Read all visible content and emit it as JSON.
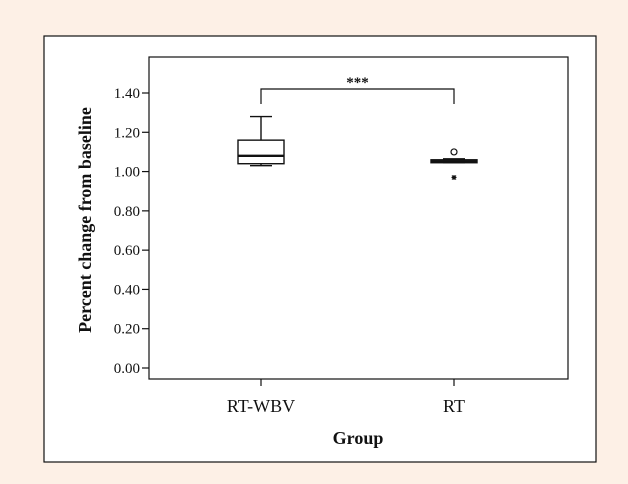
{
  "chart_data": {
    "type": "box",
    "xlabel": "Group",
    "ylabel": "Percent change from baseline",
    "ylim": [
      0.0,
      1.5
    ],
    "yticks": [
      "0.00",
      "0.20",
      "0.40",
      "0.60",
      "0.80",
      "1.00",
      "1.20",
      "1.40"
    ],
    "categories": [
      "RT-WBV",
      "RT"
    ],
    "boxes": [
      {
        "category": "RT-WBV",
        "min": 1.03,
        "q1": 1.04,
        "median": 1.08,
        "q3": 1.16,
        "max": 1.28,
        "outliers": [],
        "extremes": []
      },
      {
        "category": "RT",
        "min": 1.045,
        "q1": 1.045,
        "median": 1.05,
        "q3": 1.06,
        "max": 1.065,
        "outliers": [
          1.1
        ],
        "extremes": [
          0.97
        ]
      }
    ],
    "significance": {
      "from": "RT-WBV",
      "to": "RT",
      "label": "***"
    },
    "grid": false,
    "legend": "none"
  },
  "colors": {
    "background": "#fdf0e6",
    "plot_background": "#ffffff",
    "ink": "#111111"
  }
}
